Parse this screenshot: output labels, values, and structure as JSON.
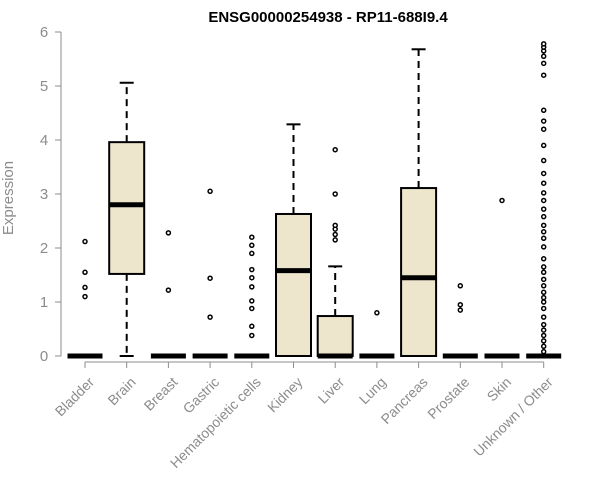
{
  "chart_data": {
    "type": "boxplot",
    "title": "ENSG00000254938 - RP11-688I9.4",
    "ylabel": "Expression",
    "xlabel": "",
    "ylim": [
      0,
      6
    ],
    "yticks": [
      0,
      1,
      2,
      3,
      4,
      5,
      6
    ],
    "grid": false,
    "legend": "none",
    "colors": {
      "box_fill": "#ede6cd",
      "stroke": "#000000",
      "axis": "#8c8c8c",
      "outlier_fill": "#ffffff"
    },
    "categories": [
      "Bladder",
      "Brain",
      "Breast",
      "Gastric",
      "Hematopoietic cells",
      "Kidney",
      "Liver",
      "Lung",
      "Pancreas",
      "Prostate",
      "Skin",
      "Unknown / Other"
    ],
    "boxes": [
      {
        "q1": 0,
        "median": 0,
        "q3": 0,
        "whisker_low": 0,
        "whisker_high": 0,
        "outliers": [
          1.1,
          1.27,
          1.55,
          2.12
        ]
      },
      {
        "q1": 1.52,
        "median": 2.8,
        "q3": 3.96,
        "whisker_low": 0,
        "whisker_high": 5.06,
        "outliers": []
      },
      {
        "q1": 0,
        "median": 0,
        "q3": 0,
        "whisker_low": 0,
        "whisker_high": 0,
        "outliers": [
          1.22,
          2.28
        ]
      },
      {
        "q1": 0,
        "median": 0,
        "q3": 0,
        "whisker_low": 0,
        "whisker_high": 0,
        "outliers": [
          0.72,
          1.44,
          3.05
        ]
      },
      {
        "q1": 0,
        "median": 0,
        "q3": 0,
        "whisker_low": 0,
        "whisker_high": 0,
        "outliers": [
          0.38,
          0.55,
          0.88,
          1.02,
          1.28,
          1.45,
          1.6,
          1.9,
          2.05,
          2.2
        ]
      },
      {
        "q1": 0,
        "median": 1.58,
        "q3": 2.63,
        "whisker_low": 0,
        "whisker_high": 4.29,
        "outliers": []
      },
      {
        "q1": 0,
        "median": 0,
        "q3": 0.74,
        "whisker_low": 0,
        "whisker_high": 1.66,
        "outliers": [
          2.15,
          2.25,
          2.35,
          2.42,
          3.0,
          3.82
        ]
      },
      {
        "q1": 0,
        "median": 0,
        "q3": 0,
        "whisker_low": 0,
        "whisker_high": 0,
        "outliers": [
          0.8
        ]
      },
      {
        "q1": 0,
        "median": 1.45,
        "q3": 3.11,
        "whisker_low": 0,
        "whisker_high": 5.68,
        "outliers": []
      },
      {
        "q1": 0,
        "median": 0,
        "q3": 0,
        "whisker_low": 0,
        "whisker_high": 0,
        "outliers": [
          0.85,
          0.95,
          1.3
        ]
      },
      {
        "q1": 0,
        "median": 0,
        "q3": 0,
        "whisker_low": 0,
        "whisker_high": 0,
        "outliers": [
          2.88
        ]
      },
      {
        "q1": 0,
        "median": 0,
        "q3": 0,
        "whisker_low": 0,
        "whisker_high": 0,
        "outliers": [
          0.08,
          0.18,
          0.28,
          0.38,
          0.48,
          0.58,
          0.72,
          0.88,
          1.0,
          1.08,
          1.18,
          1.3,
          1.42,
          1.55,
          1.65,
          1.8,
          2.02,
          2.18,
          2.3,
          2.42,
          2.58,
          2.72,
          2.88,
          3.02,
          3.2,
          3.38,
          3.62,
          3.9,
          4.2,
          4.35,
          4.55,
          5.2,
          5.42,
          5.55,
          5.65,
          5.72,
          5.78
        ]
      }
    ]
  }
}
